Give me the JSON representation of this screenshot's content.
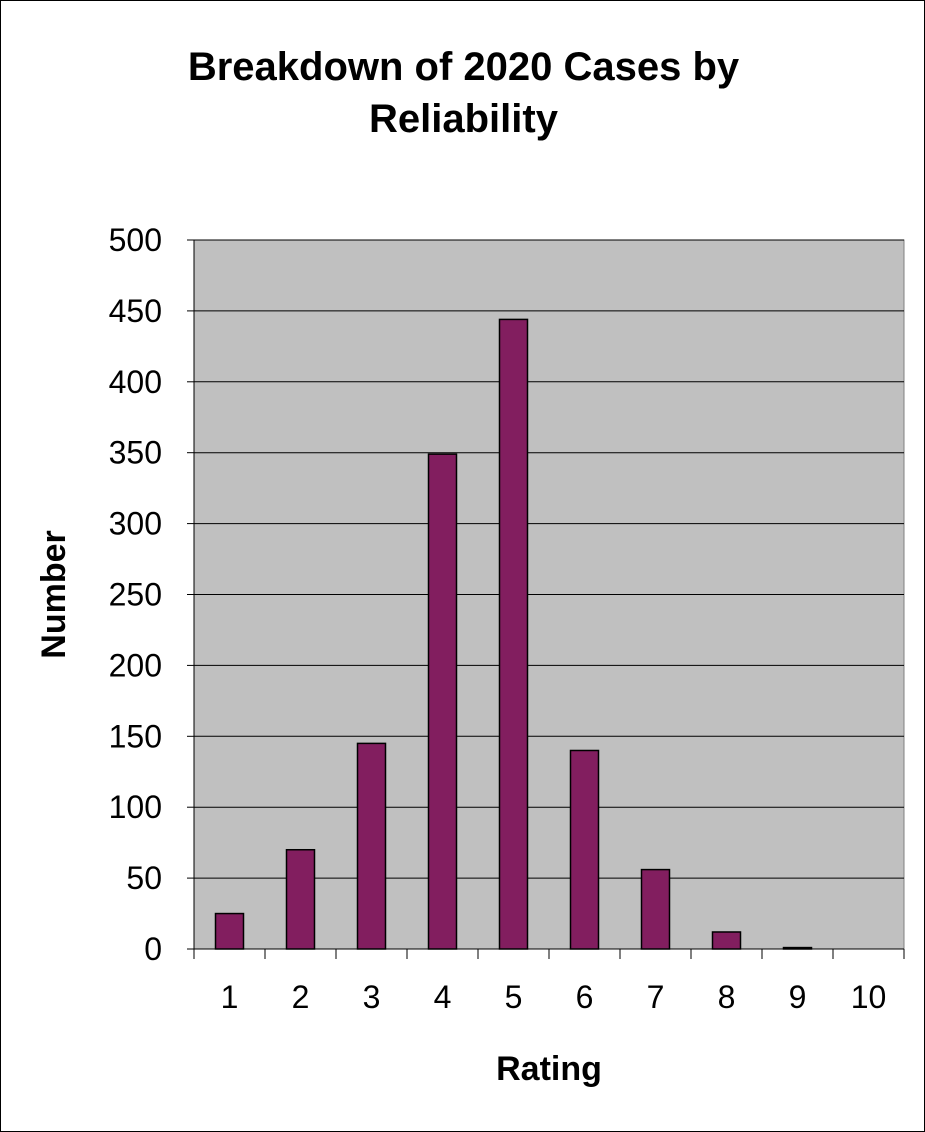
{
  "chart_data": {
    "type": "bar",
    "title_lines": [
      "Breakdown of 2020 Cases by",
      "Reliability"
    ],
    "xlabel": "Rating",
    "ylabel": "Number",
    "categories": [
      "1",
      "2",
      "3",
      "4",
      "5",
      "6",
      "7",
      "8",
      "9",
      "10"
    ],
    "values": [
      25,
      70,
      145,
      349,
      444,
      140,
      56,
      12,
      1,
      0
    ],
    "ylim": [
      0,
      500
    ],
    "yticks": [
      0,
      50,
      100,
      150,
      200,
      250,
      300,
      350,
      400,
      450,
      500
    ],
    "grid": true,
    "legend": "none",
    "colors": {
      "bar": "#821E5F",
      "plot_background": "#C0C0C0",
      "gridline": "#000000"
    }
  }
}
